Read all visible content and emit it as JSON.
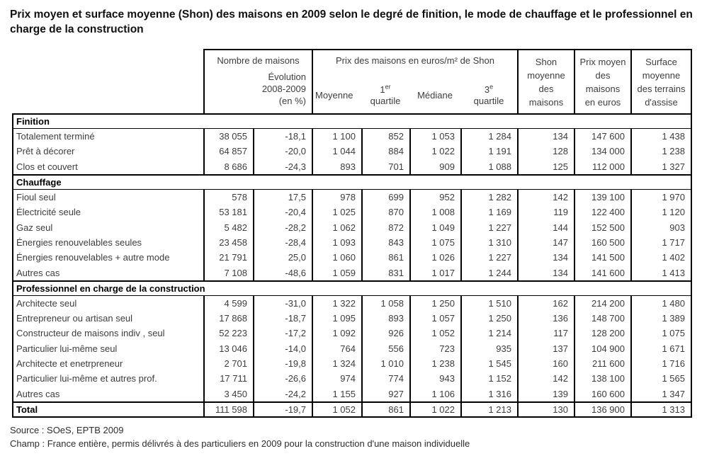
{
  "title": "Prix moyen et surface moyenne (Shon) des maisons en 2009 selon le degré de finition, le mode de chauffage et le professionnel en charge de la construction",
  "header": {
    "nombre": "Nombre de maisons",
    "evolution": "Évolution\n2008-2009\n(en %)",
    "prix_group": "Prix des maisons en euros/m² de Shon",
    "moyenne": "Moyenne",
    "q1": {
      "num": "1",
      "sup": "er",
      "label": "quartile"
    },
    "mediane": "Médiane",
    "q3": {
      "num": "3",
      "sup": "e",
      "label": "quartile"
    },
    "shon": "Shon\nmoyenne\ndes\nmaisons",
    "prix_moyen": "Prix moyen\ndes\nmaisons\nen euros",
    "surface": "Surface\nmoyenne\ndes terrains\nd'assise"
  },
  "chart_data": {
    "type": "table",
    "title": "Prix moyen et surface moyenne (Shon) des maisons en 2009 selon le degré de finition, le mode de chauffage et le professionnel en charge de la construction",
    "column_headers": [
      "Nombre de maisons",
      "Évolution 2008-2009 (en %)",
      "Prix des maisons en euros/m² de Shon - Moyenne",
      "Prix des maisons en euros/m² de Shon - 1er quartile",
      "Prix des maisons en euros/m² de Shon - Médiane",
      "Prix des maisons en euros/m² de Shon - 3e quartile",
      "Shon moyenne des maisons",
      "Prix moyen des maisons en euros",
      "Surface moyenne des terrains d'assise"
    ],
    "sections": [
      {
        "name": "Finition",
        "rows": [
          {
            "label": "Totalement terminé",
            "values": [
              "38 055",
              "-18,1",
              "1 100",
              "852",
              "1 053",
              "1 284",
              "134",
              "147 600",
              "1 438"
            ]
          },
          {
            "label": "Prêt à décorer",
            "values": [
              "64 857",
              "-20,0",
              "1 044",
              "884",
              "1 022",
              "1 191",
              "128",
              "134 000",
              "1 238"
            ]
          },
          {
            "label": "Clos et couvert",
            "values": [
              "8 686",
              "-24,3",
              "893",
              "701",
              "909",
              "1 088",
              "125",
              "112 000",
              "1 327"
            ]
          }
        ]
      },
      {
        "name": "Chauffage",
        "rows": [
          {
            "label": "Fioul seul",
            "values": [
              "578",
              "17,5",
              "978",
              "699",
              "952",
              "1 282",
              "142",
              "139 100",
              "1 970"
            ]
          },
          {
            "label": "Électricité seule",
            "values": [
              "53 181",
              "-20,4",
              "1 025",
              "870",
              "1 008",
              "1 169",
              "119",
              "122 400",
              "1 120"
            ]
          },
          {
            "label": "Gaz seul",
            "values": [
              "5 482",
              "-28,2",
              "1 062",
              "872",
              "1 049",
              "1 227",
              "144",
              "152 500",
              "903"
            ]
          },
          {
            "label": "Énergies renouvelables seules",
            "values": [
              "23 458",
              "-28,4",
              "1 093",
              "843",
              "1 075",
              "1 310",
              "147",
              "160 500",
              "1 717"
            ]
          },
          {
            "label": "Énergies renouvelables + autre mode",
            "values": [
              "21 791",
              "25,0",
              "1 060",
              "861",
              "1 026",
              "1 227",
              "134",
              "141 500",
              "1 402"
            ]
          },
          {
            "label": "Autres cas",
            "values": [
              "7 108",
              "-48,6",
              "1 059",
              "831",
              "1 017",
              "1 244",
              "134",
              "141 600",
              "1 413"
            ]
          }
        ]
      },
      {
        "name": "Professionnel en charge de la construction",
        "rows": [
          {
            "label": "Architecte seul",
            "values": [
              "4 599",
              "-31,0",
              "1 322",
              "1 058",
              "1 250",
              "1 510",
              "162",
              "214 200",
              "1 480"
            ]
          },
          {
            "label": "Entrepreneur ou artisan seul",
            "values": [
              "17 868",
              "-18,7",
              "1 095",
              "893",
              "1 057",
              "1 250",
              "136",
              "148 700",
              "1 389"
            ]
          },
          {
            "label": "Constructeur de maisons indiv , seul",
            "values": [
              "52 223",
              "-17,2",
              "1 092",
              "926",
              "1 052",
              "1 214",
              "117",
              "128 200",
              "1 075"
            ]
          },
          {
            "label": "Particulier lui-même seul",
            "values": [
              "13 046",
              "-14,0",
              "764",
              "556",
              "723",
              "935",
              "137",
              "104 900",
              "1 671"
            ]
          },
          {
            "label": "Architecte et enetrpreneur",
            "values": [
              "2 701",
              "-19,8",
              "1 324",
              "1 010",
              "1 238",
              "1 545",
              "160",
              "211 600",
              "1 716"
            ]
          },
          {
            "label": "Particulier lui-même et autres prof.",
            "values": [
              "17 711",
              "-26,6",
              "974",
              "774",
              "943",
              "1 152",
              "142",
              "138 100",
              "1 565"
            ]
          },
          {
            "label": "Autres cas",
            "values": [
              "3 450",
              "-24,2",
              "1 155",
              "927",
              "1 106",
              "1 316",
              "139",
              "160 600",
              "1 347"
            ]
          }
        ]
      }
    ],
    "total": {
      "label": "Total",
      "values": [
        "111 598",
        "-19,7",
        "1 052",
        "861",
        "1 022",
        "1 213",
        "130",
        "136 900",
        "1 313"
      ]
    }
  },
  "footer": {
    "source": "Source : SOeS, EPTB 2009",
    "champ": "Champ : France entière, permis délivrés à des particuliers en 2009 pour la construction d'une maison individuelle"
  }
}
